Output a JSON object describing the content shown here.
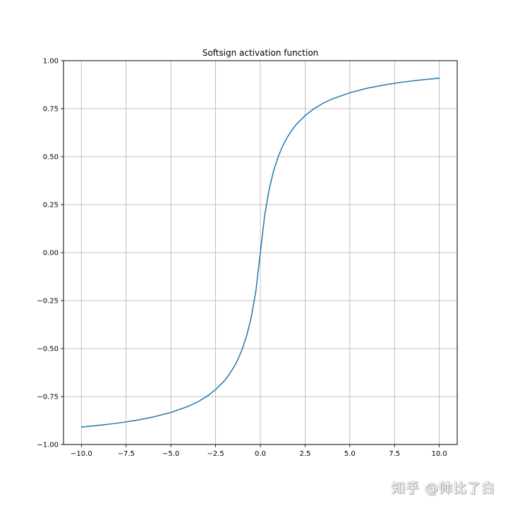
{
  "chart_data": {
    "type": "line",
    "title": "Softsign activation function",
    "xlabel": "",
    "ylabel": "",
    "xlim": [
      -11.0,
      11.0
    ],
    "ylim": [
      -1.0,
      1.0
    ],
    "grid": true,
    "x_ticks": [
      -10.0,
      -7.5,
      -5.0,
      -2.5,
      0.0,
      2.5,
      5.0,
      7.5,
      10.0
    ],
    "x_tick_labels": [
      "−10.0",
      "−7.5",
      "−5.0",
      "−2.5",
      "0.0",
      "2.5",
      "5.0",
      "7.5",
      "10.0"
    ],
    "y_ticks": [
      -1.0,
      -0.75,
      -0.5,
      -0.25,
      0.0,
      0.25,
      0.5,
      0.75,
      1.0
    ],
    "y_tick_labels": [
      "−1.00",
      "−0.75",
      "−0.50",
      "−0.25",
      "0.00",
      "0.25",
      "0.50",
      "0.75",
      "1.00"
    ],
    "series": [
      {
        "color": "#1f77b4",
        "x": [
          -10.0,
          -9.0,
          -8.0,
          -7.0,
          -6.0,
          -5.0,
          -4.0,
          -3.5,
          -3.0,
          -2.5,
          -2.0,
          -1.75,
          -1.5,
          -1.25,
          -1.0,
          -0.75,
          -0.5,
          -0.25,
          0.0,
          0.25,
          0.5,
          0.75,
          1.0,
          1.25,
          1.5,
          1.75,
          2.0,
          2.5,
          3.0,
          3.5,
          4.0,
          5.0,
          6.0,
          7.0,
          8.0,
          9.0,
          10.0
        ],
        "y": [
          -0.909,
          -0.9,
          -0.889,
          -0.875,
          -0.857,
          -0.833,
          -0.8,
          -0.778,
          -0.75,
          -0.714,
          -0.667,
          -0.636,
          -0.6,
          -0.556,
          -0.5,
          -0.429,
          -0.333,
          -0.2,
          0.0,
          0.2,
          0.333,
          0.429,
          0.5,
          0.556,
          0.6,
          0.636,
          0.667,
          0.714,
          0.75,
          0.778,
          0.8,
          0.833,
          0.857,
          0.875,
          0.889,
          0.9,
          0.909
        ]
      }
    ]
  },
  "watermark": {
    "text": "知乎 @帅比了白"
  }
}
